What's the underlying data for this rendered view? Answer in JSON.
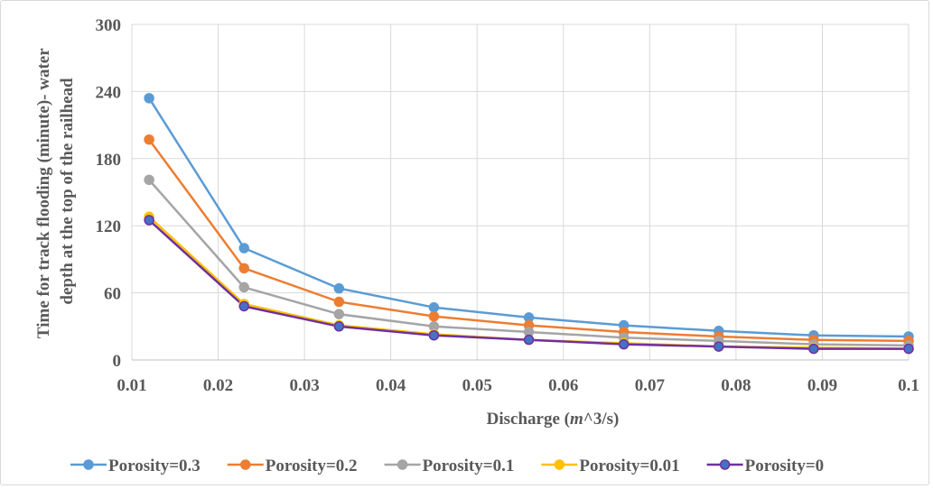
{
  "chart_data": {
    "type": "line",
    "title": "",
    "xlabel": "Discharge (m^3/s)",
    "ylabel_lines": [
      "Time for track flooding (minute)- water",
      "depth at the top of the railhead"
    ],
    "xlim": [
      0.01,
      0.1
    ],
    "ylim": [
      0,
      300
    ],
    "x_ticks": [
      "0.01",
      "0.02",
      "0.03",
      "0.04",
      "0.05",
      "0.06",
      "0.07",
      "0.08",
      "0.09",
      "0.1"
    ],
    "y_ticks": [
      "0",
      "60",
      "120",
      "180",
      "240",
      "300"
    ],
    "grid": true,
    "legend_position": "bottom",
    "x": [
      0.012,
      0.023,
      0.034,
      0.045,
      0.056,
      0.067,
      0.078,
      0.089,
      0.1
    ],
    "series": [
      {
        "name": "Porosity=0.3",
        "color": "#5b9bd5",
        "values": [
          234,
          100,
          64,
          47,
          38,
          31,
          26,
          22,
          21
        ]
      },
      {
        "name": "Porosity=0.2",
        "color": "#ed7d31",
        "values": [
          197,
          82,
          52,
          39,
          31,
          25,
          21,
          18,
          17
        ]
      },
      {
        "name": "Porosity=0.1",
        "color": "#a5a5a5",
        "values": [
          161,
          65,
          41,
          30,
          25,
          20,
          17,
          14,
          13
        ]
      },
      {
        "name": "Porosity=0.01",
        "color": "#ffc000",
        "values": [
          128,
          50,
          31,
          23,
          18,
          15,
          12,
          11,
          10
        ]
      },
      {
        "name": "Porosity=0",
        "color": "#7030a0",
        "marker_fill": "#4472c4",
        "values": [
          125,
          48,
          30,
          22,
          18,
          14,
          12,
          10,
          10
        ]
      }
    ]
  }
}
